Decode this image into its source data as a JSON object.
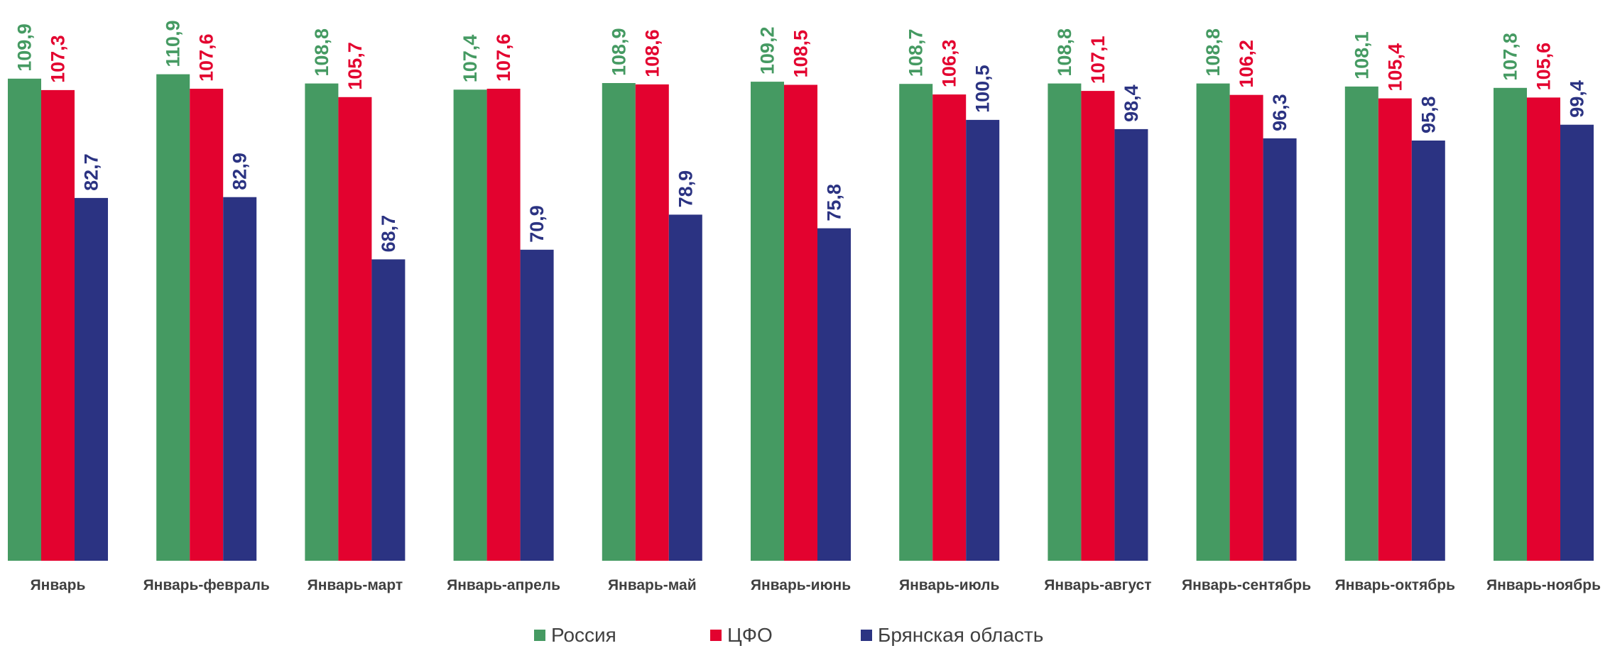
{
  "chart_data": {
    "type": "bar",
    "categories": [
      "Январь",
      "Январь-февраль",
      "Январь-март",
      "Январь-апрель",
      "Январь-май",
      "Январь-июнь",
      "Январь-июль",
      "Январь-август",
      "Январь-сентябрь",
      "Январь-октябрь",
      "Январь-ноябрь"
    ],
    "series": [
      {
        "name": "Россия",
        "color": "#459a62",
        "values": [
          109.9,
          110.9,
          108.8,
          107.4,
          108.9,
          109.2,
          108.7,
          108.8,
          108.8,
          108.1,
          107.8
        ],
        "labels": [
          "109,9",
          "110,9",
          "108,8",
          "107,4",
          "108,9",
          "109,2",
          "108,7",
          "108,8",
          "108,8",
          "108,1",
          "107,8"
        ]
      },
      {
        "name": "ЦФО",
        "color": "#e3022f",
        "values": [
          107.3,
          107.6,
          105.7,
          107.6,
          108.6,
          108.5,
          106.3,
          107.1,
          106.2,
          105.4,
          105.6
        ],
        "labels": [
          "107,3",
          "107,6",
          "105,7",
          "107,6",
          "108,6",
          "108,5",
          "106,3",
          "107,1",
          "106,2",
          "105,4",
          "105,6"
        ]
      },
      {
        "name": "Брянская область",
        "color": "#2b3382",
        "values": [
          82.7,
          82.9,
          68.7,
          70.9,
          78.9,
          75.8,
          100.5,
          98.4,
          96.3,
          95.8,
          99.4
        ],
        "labels": [
          "82,7",
          "82,9",
          "68,7",
          "70,9",
          "78,9",
          "75,8",
          "100,5",
          "98,4",
          "96,3",
          "95,8",
          "99,4"
        ]
      }
    ],
    "legend_position": "bottom",
    "grid": false
  }
}
